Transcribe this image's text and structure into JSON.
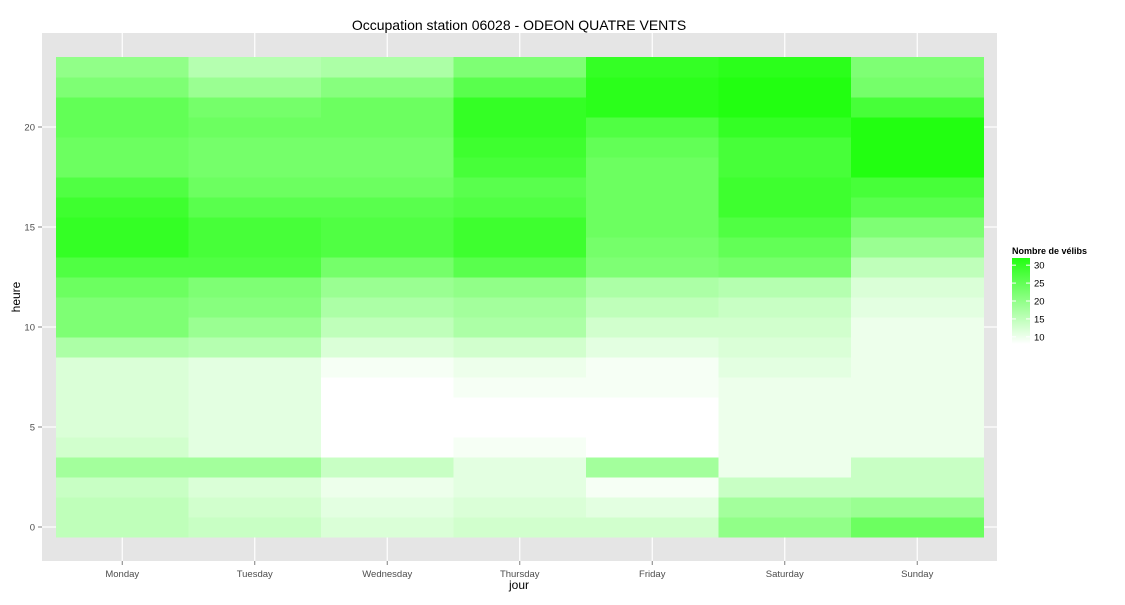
{
  "chart_data": {
    "type": "heatmap",
    "title": "Occupation station 06028 - ODEON QUATRE VENTS",
    "xlabel": "jour",
    "ylabel": "heure",
    "x": [
      "Monday",
      "Tuesday",
      "Wednesday",
      "Thursday",
      "Friday",
      "Saturday",
      "Sunday"
    ],
    "y": [
      0,
      1,
      2,
      3,
      4,
      5,
      6,
      7,
      8,
      9,
      10,
      11,
      12,
      13,
      14,
      15,
      16,
      17,
      18,
      19,
      20,
      21,
      22,
      23
    ],
    "y_ticks": [
      0,
      5,
      10,
      15,
      20
    ],
    "ylim": [
      -0.5,
      23.5
    ],
    "grid": true,
    "legend": {
      "title": "Nombre de vélibs",
      "placement": "right",
      "ticks": [
        10,
        15,
        20,
        25,
        30
      ],
      "range": [
        8,
        32
      ],
      "color_low": "#ffffff",
      "color_high": "#22ff11"
    },
    "values": [
      [
        15,
        14,
        12,
        13,
        13,
        20,
        24
      ],
      [
        15,
        13,
        11,
        12,
        11,
        18,
        19
      ],
      [
        14,
        12,
        10,
        11,
        9,
        14,
        14
      ],
      [
        18,
        18,
        14,
        11,
        18,
        10,
        14
      ],
      [
        13,
        11,
        8,
        9,
        8,
        10,
        10
      ],
      [
        12,
        11,
        8,
        8,
        8,
        10,
        10
      ],
      [
        12,
        11,
        8,
        8,
        8,
        10,
        10
      ],
      [
        12,
        11,
        8,
        9,
        9,
        10,
        10
      ],
      [
        12,
        11,
        9,
        10,
        9,
        11,
        10
      ],
      [
        17,
        16,
        12,
        13,
        11,
        12,
        10
      ],
      [
        22,
        19,
        15,
        17,
        13,
        13,
        10
      ],
      [
        22,
        21,
        17,
        18,
        15,
        14,
        11
      ],
      [
        24,
        22,
        19,
        20,
        17,
        16,
        12
      ],
      [
        27,
        27,
        23,
        26,
        22,
        23,
        15
      ],
      [
        30,
        28,
        27,
        29,
        23,
        25,
        19
      ],
      [
        30,
        28,
        27,
        29,
        24,
        27,
        22
      ],
      [
        29,
        26,
        26,
        27,
        24,
        29,
        26
      ],
      [
        27,
        24,
        24,
        26,
        24,
        29,
        28
      ],
      [
        24,
        23,
        23,
        28,
        24,
        28,
        32
      ],
      [
        24,
        23,
        23,
        29,
        25,
        28,
        32
      ],
      [
        25,
        24,
        24,
        30,
        27,
        30,
        32
      ],
      [
        25,
        23,
        24,
        30,
        31,
        32,
        28
      ],
      [
        22,
        19,
        21,
        26,
        31,
        32,
        23
      ],
      [
        20,
        16,
        17,
        22,
        30,
        31,
        22
      ]
    ]
  }
}
